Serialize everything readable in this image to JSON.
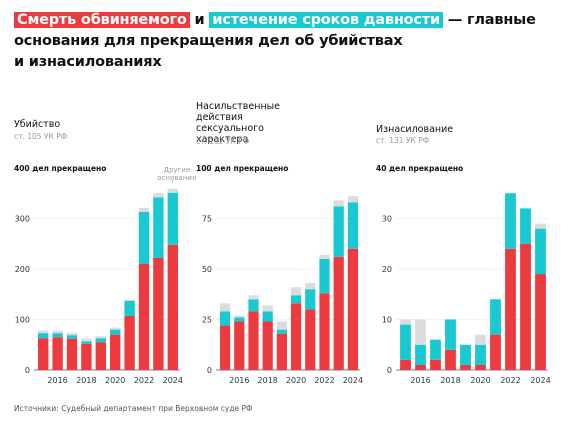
{
  "title": {
    "highlight_red": "Смерть обвиняемого",
    "highlight_cyan": "истечение сроков давности",
    "line1_rest": "— главные",
    "line2": "основания для прекращения дел об убийствах",
    "line3": "и изнасилованиях"
  },
  "colors": {
    "death": "#ec3b3f",
    "statute": "#19c8d0",
    "other": "#dcdcdc"
  },
  "source": "Источники: Судебный департамент при Верховном суде РФ",
  "chart_data": [
    {
      "type": "bar",
      "title": "Убийство",
      "subtitle": "ст. 105 УК РФ",
      "y_header": "400 дел прекращено",
      "other_label": "Другие основания",
      "yticks": [
        "0",
        "100",
        "200",
        "300"
      ],
      "ylim": [
        0,
        400
      ],
      "x_labels": [
        "2016",
        "2018",
        "2020",
        "2022",
        "2024"
      ],
      "categories": [
        2015,
        2016,
        2017,
        2018,
        2019,
        2020,
        2021,
        2022,
        2023,
        2024
      ],
      "series": [
        {
          "name": "Смерть обвиняемого",
          "values": [
            63,
            65,
            62,
            52,
            55,
            70,
            107,
            210,
            222,
            248
          ]
        },
        {
          "name": "Истечение сроков давности",
          "values": [
            10,
            8,
            7,
            5,
            8,
            10,
            30,
            103,
            120,
            103
          ]
        },
        {
          "name": "Другие основания",
          "values": [
            5,
            5,
            5,
            5,
            4,
            4,
            2,
            8,
            8,
            8
          ]
        }
      ]
    },
    {
      "type": "bar",
      "title": "Насильственные действия сексуального характера",
      "subtitle": "ст. 132 УК РФ",
      "y_header": "100 дел прекращено",
      "yticks": [
        "0",
        "25",
        "50",
        "75"
      ],
      "ylim": [
        0,
        100
      ],
      "x_labels": [
        "2016",
        "2018",
        "2020",
        "2022",
        "2024"
      ],
      "categories": [
        2015,
        2016,
        2017,
        2018,
        2019,
        2020,
        2021,
        2022,
        2023,
        2024
      ],
      "series": [
        {
          "name": "Смерть обвиняемого",
          "values": [
            22,
            24,
            29,
            24,
            18,
            33,
            30,
            38,
            56,
            60
          ]
        },
        {
          "name": "Истечение сроков давности",
          "values": [
            7,
            2,
            6,
            5,
            2,
            4,
            10,
            17,
            25,
            23
          ]
        },
        {
          "name": "Другие основания",
          "values": [
            4,
            1,
            2,
            3,
            4,
            4,
            3,
            2,
            3,
            3
          ]
        }
      ]
    },
    {
      "type": "bar",
      "title": "Изнасилование",
      "subtitle": "ст. 131 УК РФ",
      "y_header": "40 дел прекращено",
      "yticks": [
        "0",
        "10",
        "20",
        "30"
      ],
      "ylim": [
        0,
        40
      ],
      "x_labels": [
        "2016",
        "2018",
        "2020",
        "2022",
        "2024"
      ],
      "categories": [
        2015,
        2016,
        2017,
        2018,
        2019,
        2020,
        2021,
        2022,
        2023,
        2024
      ],
      "series": [
        {
          "name": "Смерть обвиняемого",
          "values": [
            2,
            1,
            2,
            4,
            1,
            1,
            7,
            24,
            25,
            19
          ]
        },
        {
          "name": "Истечение сроков давности",
          "values": [
            7,
            4,
            4,
            6,
            4,
            4,
            7,
            11,
            7,
            9
          ]
        },
        {
          "name": "Другие основания",
          "values": [
            1,
            5,
            0,
            0,
            0,
            2,
            0,
            0,
            0,
            1
          ]
        }
      ]
    }
  ]
}
